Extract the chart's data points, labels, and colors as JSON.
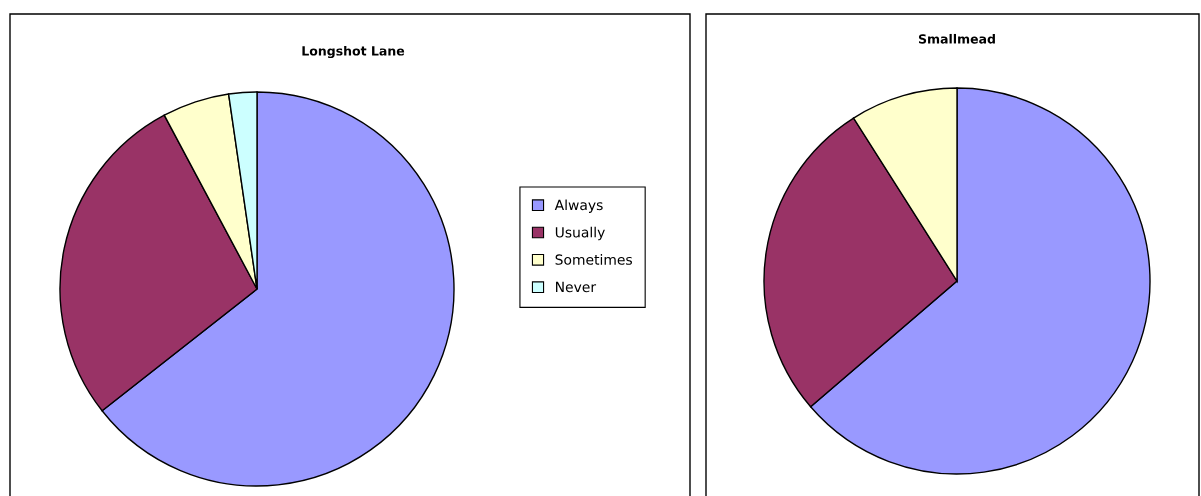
{
  "chart_data": [
    {
      "type": "pie",
      "title": "Longshot Lane",
      "categories": [
        "Always",
        "Usually",
        "Sometimes",
        "Never"
      ],
      "values": [
        64.4,
        27.8,
        5.5,
        2.3
      ],
      "colors": [
        "#9999ff",
        "#993366",
        "#ffffcc",
        "#ccffff"
      ],
      "legend": "right"
    },
    {
      "type": "pie",
      "title": "Smallmead",
      "categories": [
        null,
        null,
        null
      ],
      "values": [
        63.7,
        27.3,
        9.0
      ],
      "colors": [
        "#9999ff",
        "#993366",
        "#ffffcc"
      ]
    }
  ]
}
